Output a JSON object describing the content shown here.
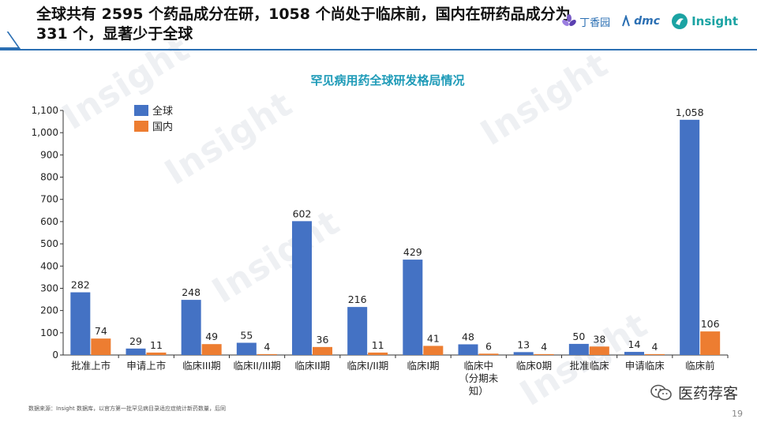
{
  "header": {
    "headline": "全球共有 2595 个药品成分在研，1058 个尚处于临床前，国内在研药品成分为 331 个，显著少于全球",
    "logos": [
      {
        "name": "dxy",
        "text": "丁香园",
        "icon": "flower-icon"
      },
      {
        "name": "dmc",
        "text": "dmc",
        "icon": "dmc-mark-icon"
      },
      {
        "name": "insight",
        "text": "Insight",
        "icon": "insight-bird-icon"
      }
    ],
    "accent_color": "#2b6fb3"
  },
  "watermark_text": "Insight",
  "chart_data": {
    "type": "bar",
    "title": "罕见病用药全球研发格局情况",
    "title_color": "#1f9bb8",
    "categories": [
      "批准上市",
      "申请上市",
      "临床III期",
      "临床II/III期",
      "临床II期",
      "临床I/II期",
      "临床I期",
      "临床中\n（分期未\n知）",
      "临床0期",
      "批准临床",
      "申请临床",
      "临床前"
    ],
    "series": [
      {
        "name": "全球",
        "color": "#4472c4",
        "values": [
          282,
          29,
          248,
          55,
          602,
          216,
          429,
          48,
          13,
          50,
          14,
          1058
        ]
      },
      {
        "name": "国内",
        "color": "#ed7d31",
        "values": [
          74,
          11,
          49,
          4,
          36,
          11,
          41,
          6,
          4,
          38,
          4,
          106
        ]
      }
    ],
    "data_labels": [
      [
        "282",
        "29",
        "248",
        "55",
        "602",
        "216",
        "429",
        "48",
        "13",
        "50",
        "14",
        "1,058"
      ],
      [
        "74",
        "11",
        "49",
        "4",
        "36",
        "11",
        "41",
        "6",
        "4",
        "38",
        "4",
        "106"
      ]
    ],
    "ylim": [
      0,
      1100
    ],
    "yticks": [
      0,
      100,
      200,
      300,
      400,
      500,
      600,
      700,
      800,
      900,
      1000,
      1100
    ],
    "ytick_labels": [
      "0",
      "100",
      "200",
      "300",
      "400",
      "500",
      "600",
      "700",
      "800",
      "900",
      "1,000",
      "1,100"
    ],
    "grid": false,
    "legend": "top-left"
  },
  "footer": {
    "source": "数据来源：Insight 数据库，以官方第一批罕见病目录适应症统计新药数量，后同",
    "page_number": "19",
    "wechat_label": "医药荐客",
    "wechat_icon": "wechat-icon"
  }
}
